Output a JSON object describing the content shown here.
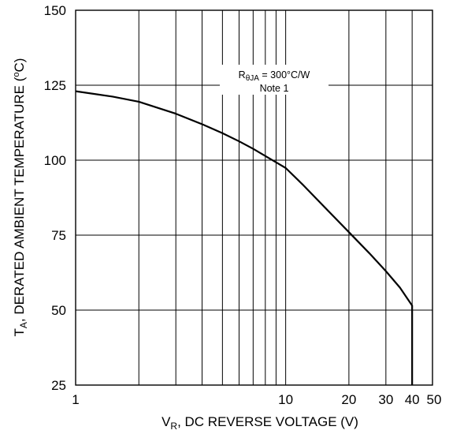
{
  "chart_data": {
    "type": "line",
    "title": "",
    "xscale": "log",
    "xlim": [
      1,
      50
    ],
    "ylim": [
      25,
      150
    ],
    "grid": true,
    "x_major_ticks": [
      1,
      10
    ],
    "x_minor_ticks": [
      2,
      3,
      4,
      5,
      6,
      7,
      8,
      9,
      20,
      30,
      40
    ],
    "y_ticks": [
      25,
      50,
      75,
      100,
      125,
      150
    ],
    "x_tick_labels": [
      {
        "value": 1,
        "label": "1"
      },
      {
        "value": 10,
        "label": "10"
      },
      {
        "value": 20,
        "label": "20"
      },
      {
        "value": 30,
        "label": "30"
      },
      {
        "value": 40,
        "label": "40"
      },
      {
        "value": 50,
        "label": "50"
      }
    ],
    "y_tick_labels": [
      "25",
      "50",
      "75",
      "100",
      "125",
      "150"
    ],
    "xlabel": {
      "main": "V",
      "sub": "R",
      "rest": ", DC REVERSE VOLTAGE (V)"
    },
    "ylabel": {
      "main": "T",
      "sub": "A",
      "rest": ", DERATED AMBIENT TEMPERATURE (",
      "sup": "o",
      "end": "C)"
    },
    "annotation": {
      "line1_main": "R",
      "line1_sub": "θJA",
      "line1_rest": " = 300°C/W",
      "line2": "Note 1"
    },
    "line_color": "#000000",
    "series": [
      {
        "x": [
          1,
          1.5,
          2,
          3,
          4,
          5,
          6,
          7,
          8,
          9,
          10,
          12,
          15,
          20,
          25,
          30,
          35,
          40,
          40
        ],
        "y": [
          123,
          121.2,
          119.5,
          115.5,
          112,
          109,
          106.3,
          103.8,
          101.4,
          99.3,
          97.4,
          92,
          85,
          76,
          69,
          63,
          57.5,
          51.5,
          25
        ]
      }
    ]
  }
}
